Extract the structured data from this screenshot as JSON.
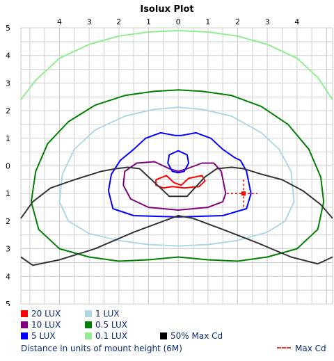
{
  "chart_data": {
    "type": "line",
    "title": "Isolux Plot",
    "xlabel": "Distance in units of mount height (6M)",
    "x_tick_labels": [
      "4",
      "3",
      "2",
      "1",
      "0",
      "1",
      "2",
      "3",
      "4"
    ],
    "y_tick_labels": [
      "5",
      "4",
      "3",
      "2",
      "1",
      "0",
      "1",
      "2",
      "3",
      "4",
      "5"
    ],
    "xlim": [
      -5.3,
      5.2
    ],
    "ylim": [
      -5,
      5
    ],
    "grid": true,
    "series": [
      {
        "name": "20 LUX",
        "color": "#ff0000",
        "points": [
          [
            -0.75,
            -0.5
          ],
          [
            -0.4,
            -0.35
          ],
          [
            -0.15,
            -0.6
          ],
          [
            0.1,
            -0.7
          ],
          [
            0.35,
            -0.45
          ],
          [
            0.8,
            -0.35
          ],
          [
            0.9,
            -0.55
          ],
          [
            0.7,
            -0.75
          ],
          [
            0.2,
            -0.8
          ],
          [
            -0.2,
            -0.75
          ],
          [
            -0.5,
            -0.8
          ],
          [
            -0.75,
            -0.7
          ],
          [
            -0.75,
            -0.5
          ]
        ]
      },
      {
        "name": "10 LUX",
        "color": "#800080",
        "points": [
          [
            -1.85,
            -0.7
          ],
          [
            -1.8,
            -0.2
          ],
          [
            -1.4,
            0.1
          ],
          [
            -0.8,
            0.15
          ],
          [
            -0.3,
            -0.1
          ],
          [
            0,
            -0.2
          ],
          [
            0.3,
            -0.1
          ],
          [
            0.8,
            0.1
          ],
          [
            1.2,
            0.1
          ],
          [
            1.45,
            -0.2
          ],
          [
            1.6,
            -1
          ],
          [
            1.5,
            -1.3
          ],
          [
            1,
            -1.5
          ],
          [
            0,
            -1.6
          ],
          [
            -1,
            -1.5
          ],
          [
            -1.6,
            -1.2
          ],
          [
            -1.85,
            -0.7
          ]
        ]
      },
      {
        "name": "5 LUX",
        "color": "#0000ff",
        "points": [
          [
            -2.35,
            -0.9
          ],
          [
            -2.25,
            -0.3
          ],
          [
            -1.95,
            0.2
          ],
          [
            -1.5,
            0.6
          ],
          [
            -1.1,
            1
          ],
          [
            -0.6,
            1.2
          ],
          [
            -0.1,
            1.1
          ],
          [
            0.1,
            1.1
          ],
          [
            0.6,
            1.2
          ],
          [
            1.1,
            1.0
          ],
          [
            1.5,
            0.6
          ],
          [
            1.9,
            0.3
          ],
          [
            2.1,
            0.2
          ],
          [
            2.3,
            -0.2
          ],
          [
            2.45,
            -1
          ],
          [
            2.3,
            -1.55
          ],
          [
            1.5,
            -1.8
          ],
          [
            0,
            -1.85
          ],
          [
            -1.5,
            -1.8
          ],
          [
            -2.2,
            -1.55
          ],
          [
            -2.35,
            -0.9
          ]
        ]
      },
      {
        "name": "5 LUX",
        "color": "#0000ff",
        "points": [
          [
            0,
            0.55
          ],
          [
            0.3,
            0.4
          ],
          [
            0.35,
            0.1
          ],
          [
            0.2,
            -0.2
          ],
          [
            0,
            -0.25
          ],
          [
            -0.2,
            -0.2
          ],
          [
            -0.35,
            0.1
          ],
          [
            -0.3,
            0.4
          ],
          [
            0,
            0.55
          ]
        ]
      },
      {
        "name": "1 LUX",
        "color": "#add8e6",
        "points": [
          [
            -4.0,
            -1.3
          ],
          [
            -3.9,
            -0.3
          ],
          [
            -3.5,
            0.6
          ],
          [
            -2.8,
            1.3
          ],
          [
            -1.8,
            1.8
          ],
          [
            -0.8,
            2.05
          ],
          [
            0,
            2.12
          ],
          [
            0.8,
            2.05
          ],
          [
            1.8,
            1.8
          ],
          [
            2.8,
            1.2
          ],
          [
            3.4,
            0.6
          ],
          [
            3.8,
            -0.2
          ],
          [
            3.9,
            -1.3
          ],
          [
            3.6,
            -2.0
          ],
          [
            3.0,
            -2.4
          ],
          [
            2.0,
            -2.7
          ],
          [
            1.0,
            -2.85
          ],
          [
            0,
            -2.9
          ],
          [
            -1.0,
            -2.85
          ],
          [
            -2.0,
            -2.7
          ],
          [
            -3.0,
            -2.45
          ],
          [
            -3.7,
            -2.0
          ],
          [
            -4.0,
            -1.3
          ]
        ]
      },
      {
        "name": "0.5 LUX",
        "color": "#008000",
        "points": [
          [
            -4.95,
            -1.3
          ],
          [
            -4.8,
            -0.2
          ],
          [
            -4.4,
            0.8
          ],
          [
            -3.7,
            1.6
          ],
          [
            -2.8,
            2.2
          ],
          [
            -1.8,
            2.55
          ],
          [
            -0.8,
            2.7
          ],
          [
            0,
            2.75
          ],
          [
            0.8,
            2.7
          ],
          [
            1.8,
            2.55
          ],
          [
            2.8,
            2.15
          ],
          [
            3.7,
            1.5
          ],
          [
            4.4,
            0.6
          ],
          [
            4.8,
            -0.4
          ],
          [
            4.9,
            -1.3
          ],
          [
            4.7,
            -2.3
          ],
          [
            4.0,
            -3.0
          ],
          [
            3.0,
            -3.3
          ],
          [
            2.0,
            -3.45
          ],
          [
            1.0,
            -3.4
          ],
          [
            0,
            -3.3
          ],
          [
            -1.0,
            -3.4
          ],
          [
            -2.0,
            -3.45
          ],
          [
            -3.0,
            -3.3
          ],
          [
            -4.0,
            -3.0
          ],
          [
            -4.7,
            -2.3
          ],
          [
            -4.95,
            -1.3
          ]
        ]
      },
      {
        "name": "0.1 LUX",
        "color": "#90ee90",
        "points": [
          [
            -5.3,
            2.4
          ],
          [
            -4.8,
            3.1
          ],
          [
            -4.0,
            3.9
          ],
          [
            -3.0,
            4.4
          ],
          [
            -2.0,
            4.7
          ],
          [
            -1.0,
            4.85
          ],
          [
            0,
            4.9
          ],
          [
            1.0,
            4.85
          ],
          [
            2.0,
            4.7
          ],
          [
            3.0,
            4.4
          ],
          [
            4.0,
            3.9
          ],
          [
            4.7,
            3.2
          ],
          [
            5.2,
            2.4
          ]
        ]
      },
      {
        "name": "50% Max Cd",
        "color": "#333333",
        "points": [
          [
            -5.3,
            -1.9
          ],
          [
            -4.9,
            -1.3
          ],
          [
            -4.3,
            -0.8
          ],
          [
            -3.5,
            -0.5
          ],
          [
            -2.6,
            -0.2
          ],
          [
            -2.1,
            -0.1
          ],
          [
            -1.7,
            -0.05
          ],
          [
            -1.3,
            -0.1
          ],
          [
            -1.0,
            -0.4
          ],
          [
            -0.3,
            -1.1
          ],
          [
            0.3,
            -1.1
          ],
          [
            0.9,
            -0.4
          ],
          [
            1.3,
            -0.1
          ],
          [
            1.8,
            -0.05
          ],
          [
            2.2,
            -0.1
          ],
          [
            2.8,
            -0.3
          ],
          [
            3.5,
            -0.5
          ],
          [
            4.2,
            -0.9
          ],
          [
            4.8,
            -1.4
          ],
          [
            5.2,
            -1.9
          ]
        ]
      },
      {
        "name": "50% Max Cd",
        "color": "#333333",
        "points": [
          [
            -5.3,
            -3.3
          ],
          [
            -4.9,
            -3.6
          ],
          [
            -4.0,
            -3.4
          ],
          [
            -2.8,
            -3.0
          ],
          [
            -1.5,
            -2.4
          ],
          [
            -0.5,
            -2.0
          ],
          [
            0,
            -1.8
          ],
          [
            0.5,
            -1.9
          ],
          [
            1.5,
            -2.3
          ],
          [
            2.7,
            -2.8
          ],
          [
            3.8,
            -3.3
          ],
          [
            4.7,
            -3.55
          ],
          [
            5.2,
            -3.3
          ]
        ]
      }
    ],
    "max_cd": {
      "name": "Max Cd",
      "x": 2.2,
      "y": -1.0,
      "color": "#ff0000"
    },
    "legend": [
      {
        "label": "20 LUX",
        "color": "#ff0000"
      },
      {
        "label": "1 LUX",
        "color": "#add8e6"
      },
      {
        "label": "10 LUX",
        "color": "#800080"
      },
      {
        "label": "0.5 LUX",
        "color": "#008000"
      },
      {
        "label": "5 LUX",
        "color": "#0000ff"
      },
      {
        "label": "0.1 LUX",
        "color": "#90ee90"
      },
      {
        "label": "50% Max Cd",
        "color": "#000000"
      }
    ],
    "max_cd_label": "Max Cd"
  }
}
